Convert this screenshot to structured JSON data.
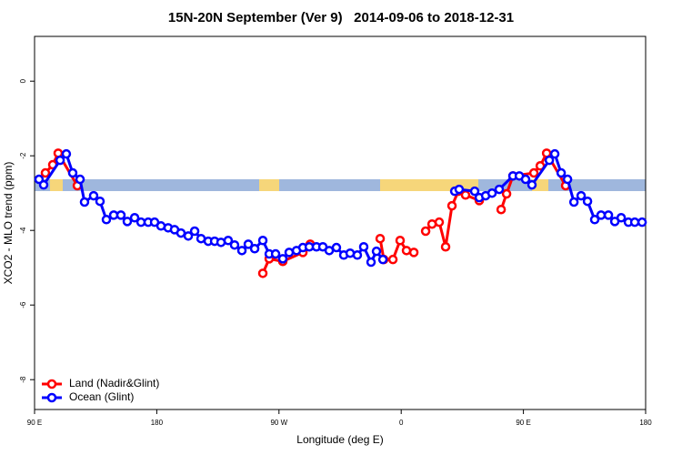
{
  "chart_data": {
    "type": "line",
    "title": "15N-20N September (Ver 9)   2014-09-06 to 2018-12-31",
    "x_label": "Longitude (deg E)",
    "y_label": "XCO2 - MLO trend (ppm)",
    "xlim": [
      90,
      540
    ],
    "ylim": [
      -8.8,
      1.2
    ],
    "xticks": [
      {
        "value": 90,
        "label": "90 E"
      },
      180,
      {
        "value": 270,
        "label": "90 W"
      },
      {
        "value": 360,
        "label": "0"
      },
      {
        "value": 450,
        "label": "90 E"
      },
      {
        "value": 540,
        "label": "180"
      }
    ],
    "yticks": [
      -8,
      -6,
      -4,
      -2,
      0
    ],
    "legend": "bottom-left",
    "series": [
      {
        "name": "Land (Nadir&Glint)",
        "color": "#ff0000",
        "x": [
          98.0,
          103.4,
          107.4,
          121.5,
          null,
          258.1,
          262.8,
          272.8,
          287.6,
          293.0,
          null,
          344.5,
          347.2,
          353.9,
          359.2,
          363.9,
          369.3,
          null,
          378.0,
          382.7,
          388.0,
          392.7,
          397.4,
          402.1,
          407.4,
          417.5,
          null,
          433.6,
          437.6,
          442.3,
          457.7,
          462.4,
          467.1,
          481.1
        ],
        "values": [
          -2.46,
          -2.24,
          -1.93,
          -2.8,
          null,
          -5.15,
          -4.76,
          -4.83,
          -4.59,
          -4.37,
          null,
          -4.22,
          -4.78,
          -4.78,
          -4.27,
          -4.54,
          -4.59,
          null,
          -4.02,
          -3.83,
          -3.78,
          -4.44,
          -3.34,
          -2.95,
          -3.05,
          -3.2,
          null,
          -3.44,
          -3.02,
          -2.54,
          -2.46,
          -2.27,
          -1.93,
          -2.8
        ]
      },
      {
        "name": "Ocean (Glint)",
        "color": "#0000ff",
        "x": [
          93.3,
          96.7,
          108.8,
          113.4,
          118.1,
          123.5,
          126.8,
          133.5,
          138.2,
          142.9,
          148.3,
          153.6,
          158.3,
          163.7,
          168.4,
          173.7,
          178.4,
          183.1,
          188.4,
          193.1,
          197.8,
          203.2,
          207.9,
          212.6,
          217.9,
          222.6,
          227.3,
          232.6,
          237.3,
          242.7,
          247.4,
          252.1,
          258.1,
          262.8,
          267.5,
          272.8,
          277.5,
          282.9,
          287.6,
          292.3,
          297.6,
          302.3,
          307.0,
          312.3,
          317.7,
          322.4,
          327.7,
          332.4,
          337.8,
          341.8,
          346.5,
          null,
          399.4,
          402.7,
          414.1,
          417.5,
          422.2,
          426.9,
          432.2,
          442.3,
          447.0,
          451.6,
          456.3,
          469.1,
          473.1,
          477.8,
          482.5,
          487.2,
          492.5,
          497.2,
          502.5,
          507.2,
          512.6,
          517.3,
          522.0,
          527.3,
          532.0,
          537.4
        ],
        "values": [
          -2.63,
          -2.78,
          -2.12,
          -1.95,
          -2.46,
          -2.63,
          -3.24,
          -3.07,
          -3.22,
          -3.71,
          -3.59,
          -3.59,
          -3.76,
          -3.66,
          -3.78,
          -3.78,
          -3.78,
          -3.88,
          -3.93,
          -3.98,
          -4.07,
          -4.15,
          -4.02,
          -4.22,
          -4.29,
          -4.29,
          -4.32,
          -4.27,
          -4.39,
          -4.54,
          -4.37,
          -4.49,
          -4.27,
          -4.63,
          -4.63,
          -4.76,
          -4.59,
          -4.54,
          -4.46,
          -4.44,
          -4.44,
          -4.44,
          -4.54,
          -4.46,
          -4.66,
          -4.61,
          -4.66,
          -4.44,
          -4.85,
          -4.56,
          -4.78,
          null,
          -2.95,
          -2.9,
          -2.95,
          -3.12,
          -3.07,
          -3.0,
          -2.9,
          -2.54,
          -2.54,
          -2.63,
          -2.78,
          -2.12,
          -1.95,
          -2.46,
          -2.63,
          -3.24,
          -3.07,
          -3.22,
          -3.71,
          -3.59,
          -3.59,
          -3.76,
          -3.66,
          -3.78,
          -3.78,
          -3.78
        ]
      }
    ]
  }
}
